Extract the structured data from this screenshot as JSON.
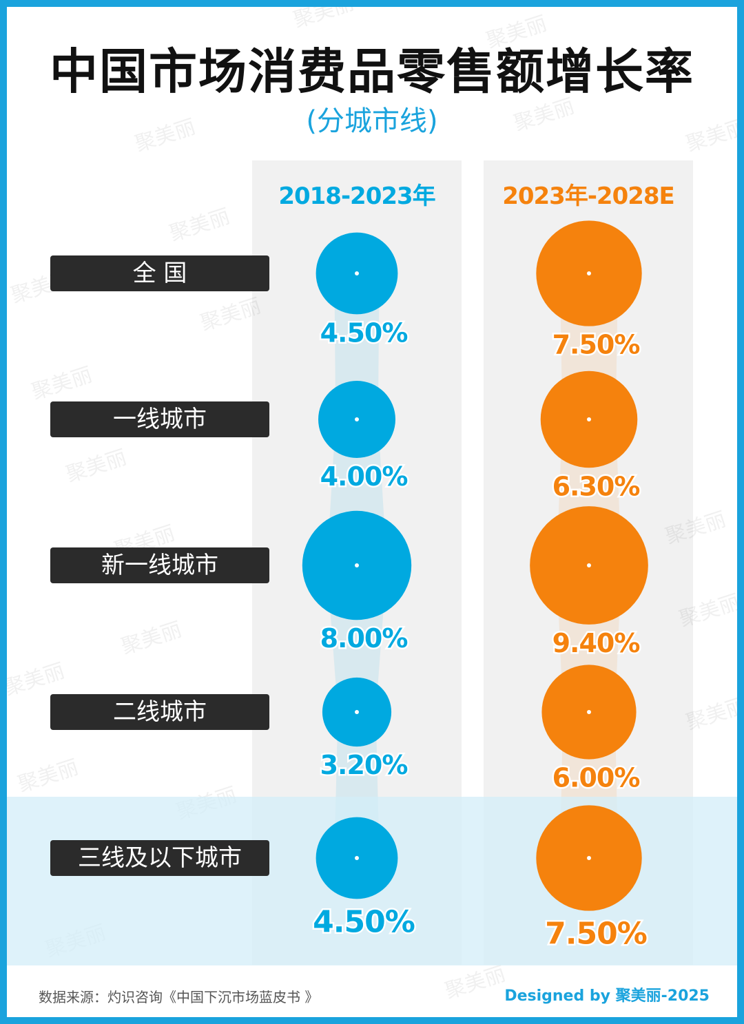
{
  "header": {
    "title": "中国市场消费品零售额增长率",
    "subtitle": "(分城市线)"
  },
  "chart_data": {
    "type": "scatter",
    "title": "中国市场消费品零售额增长率",
    "subtitle": "(分城市线)",
    "categories": [
      "全 国",
      "一线城市",
      "新一线城市",
      "二线城市",
      "三线及以下城市"
    ],
    "series": [
      {
        "name": "2018-2023年",
        "color": "#00a9e0",
        "values": [
          4.5,
          4.0,
          8.0,
          3.2,
          4.5
        ],
        "labels": [
          "4.50%",
          "4.00%",
          "8.00%",
          "3.20%",
          "4.50%"
        ]
      },
      {
        "name": "2023年-2028E",
        "color": "#f5820d",
        "values": [
          7.5,
          6.3,
          9.4,
          6.0,
          7.5
        ],
        "labels": [
          "7.50%",
          "6.30%",
          "9.40%",
          "6.00%",
          "7.50%"
        ]
      }
    ],
    "highlight_category": "三线及以下城市",
    "encoding": "bubble area",
    "grid": false,
    "legend": "column headers at top"
  },
  "footer": {
    "source": "数据来源：灼识咨询《中国下沉市场蓝皮书 》",
    "credit": "Designed by 聚美丽-2025"
  },
  "watermark": "聚美丽",
  "colors": {
    "frame": "#1aa3dd",
    "blue": "#00a9e0",
    "orange": "#f5820d",
    "label_bg": "#2b2b2b",
    "panel": "#f1f1f1",
    "highlight_band": "#d3edf8"
  }
}
